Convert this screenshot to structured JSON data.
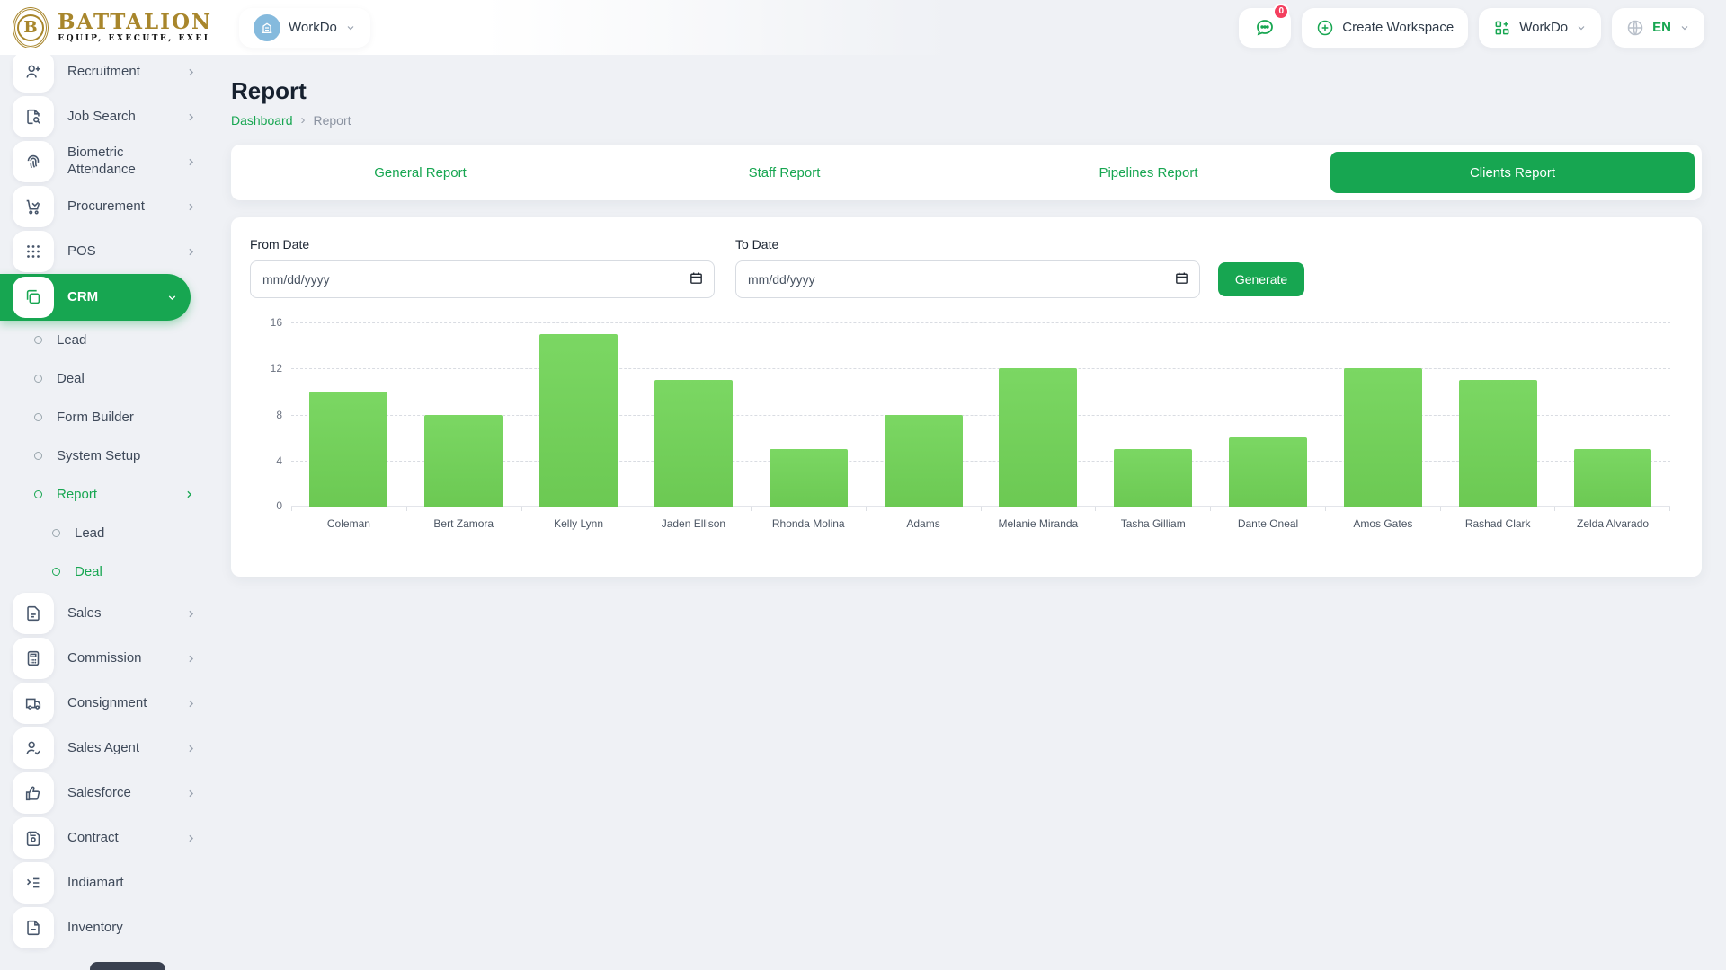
{
  "brand": {
    "name": "BATTALION",
    "tagline": "EQUIP, EXECUTE, EXEL",
    "monogram": "B"
  },
  "header": {
    "workspace_switcher_label": "WorkDo",
    "messages_badge": "0",
    "create_workspace_label": "Create Workspace",
    "app_menu_label": "WorkDo",
    "language_label": "EN"
  },
  "sidebar": {
    "items": [
      {
        "label": "Recruitment"
      },
      {
        "label": "Job Search"
      },
      {
        "label": "Biometric Attendance"
      },
      {
        "label": "Procurement"
      },
      {
        "label": "POS"
      },
      {
        "label": "CRM"
      },
      {
        "label": "Sales"
      },
      {
        "label": "Commission"
      },
      {
        "label": "Consignment"
      },
      {
        "label": "Sales Agent"
      },
      {
        "label": "Salesforce"
      },
      {
        "label": "Contract"
      },
      {
        "label": "Indiamart"
      },
      {
        "label": "Inventory"
      }
    ],
    "crm_submenu": [
      {
        "label": "Lead"
      },
      {
        "label": "Deal"
      },
      {
        "label": "Form Builder"
      },
      {
        "label": "System Setup"
      },
      {
        "label": "Report"
      }
    ],
    "report_submenu": [
      {
        "label": "Lead"
      },
      {
        "label": "Deal"
      }
    ]
  },
  "page": {
    "title": "Report",
    "breadcrumb_home": "Dashboard",
    "breadcrumb_current": "Report"
  },
  "tabs": [
    {
      "label": "General Report"
    },
    {
      "label": "Staff Report"
    },
    {
      "label": "Pipelines Report"
    },
    {
      "label": "Clients Report"
    }
  ],
  "filter": {
    "from_label": "From Date",
    "to_label": "To Date",
    "date_placeholder": "mm/dd/yyyy",
    "generate_label": "Generate"
  },
  "colors": {
    "primary_green": "#17a651",
    "bar_green": "#6fce57",
    "badge_red": "#f43f5e",
    "avatar_blue": "#85badd"
  },
  "chart_data": {
    "type": "bar",
    "title": "",
    "xlabel": "",
    "ylabel": "",
    "categories": [
      "Coleman",
      "Bert Zamora",
      "Kelly Lynn",
      "Jaden Ellison",
      "Rhonda Molina",
      "Adams",
      "Melanie Miranda",
      "Tasha Gilliam",
      "Dante Oneal",
      "Amos Gates",
      "Rashad Clark",
      "Zelda Alvarado"
    ],
    "values": [
      10,
      8,
      15,
      11,
      5,
      8,
      12,
      5,
      6,
      12,
      11,
      5
    ],
    "ylim": [
      0,
      16
    ],
    "yticks": [
      16,
      12,
      8,
      4,
      0
    ],
    "grid": "horizontal-dashed",
    "legend": false,
    "bar_color": "#6fce57"
  }
}
